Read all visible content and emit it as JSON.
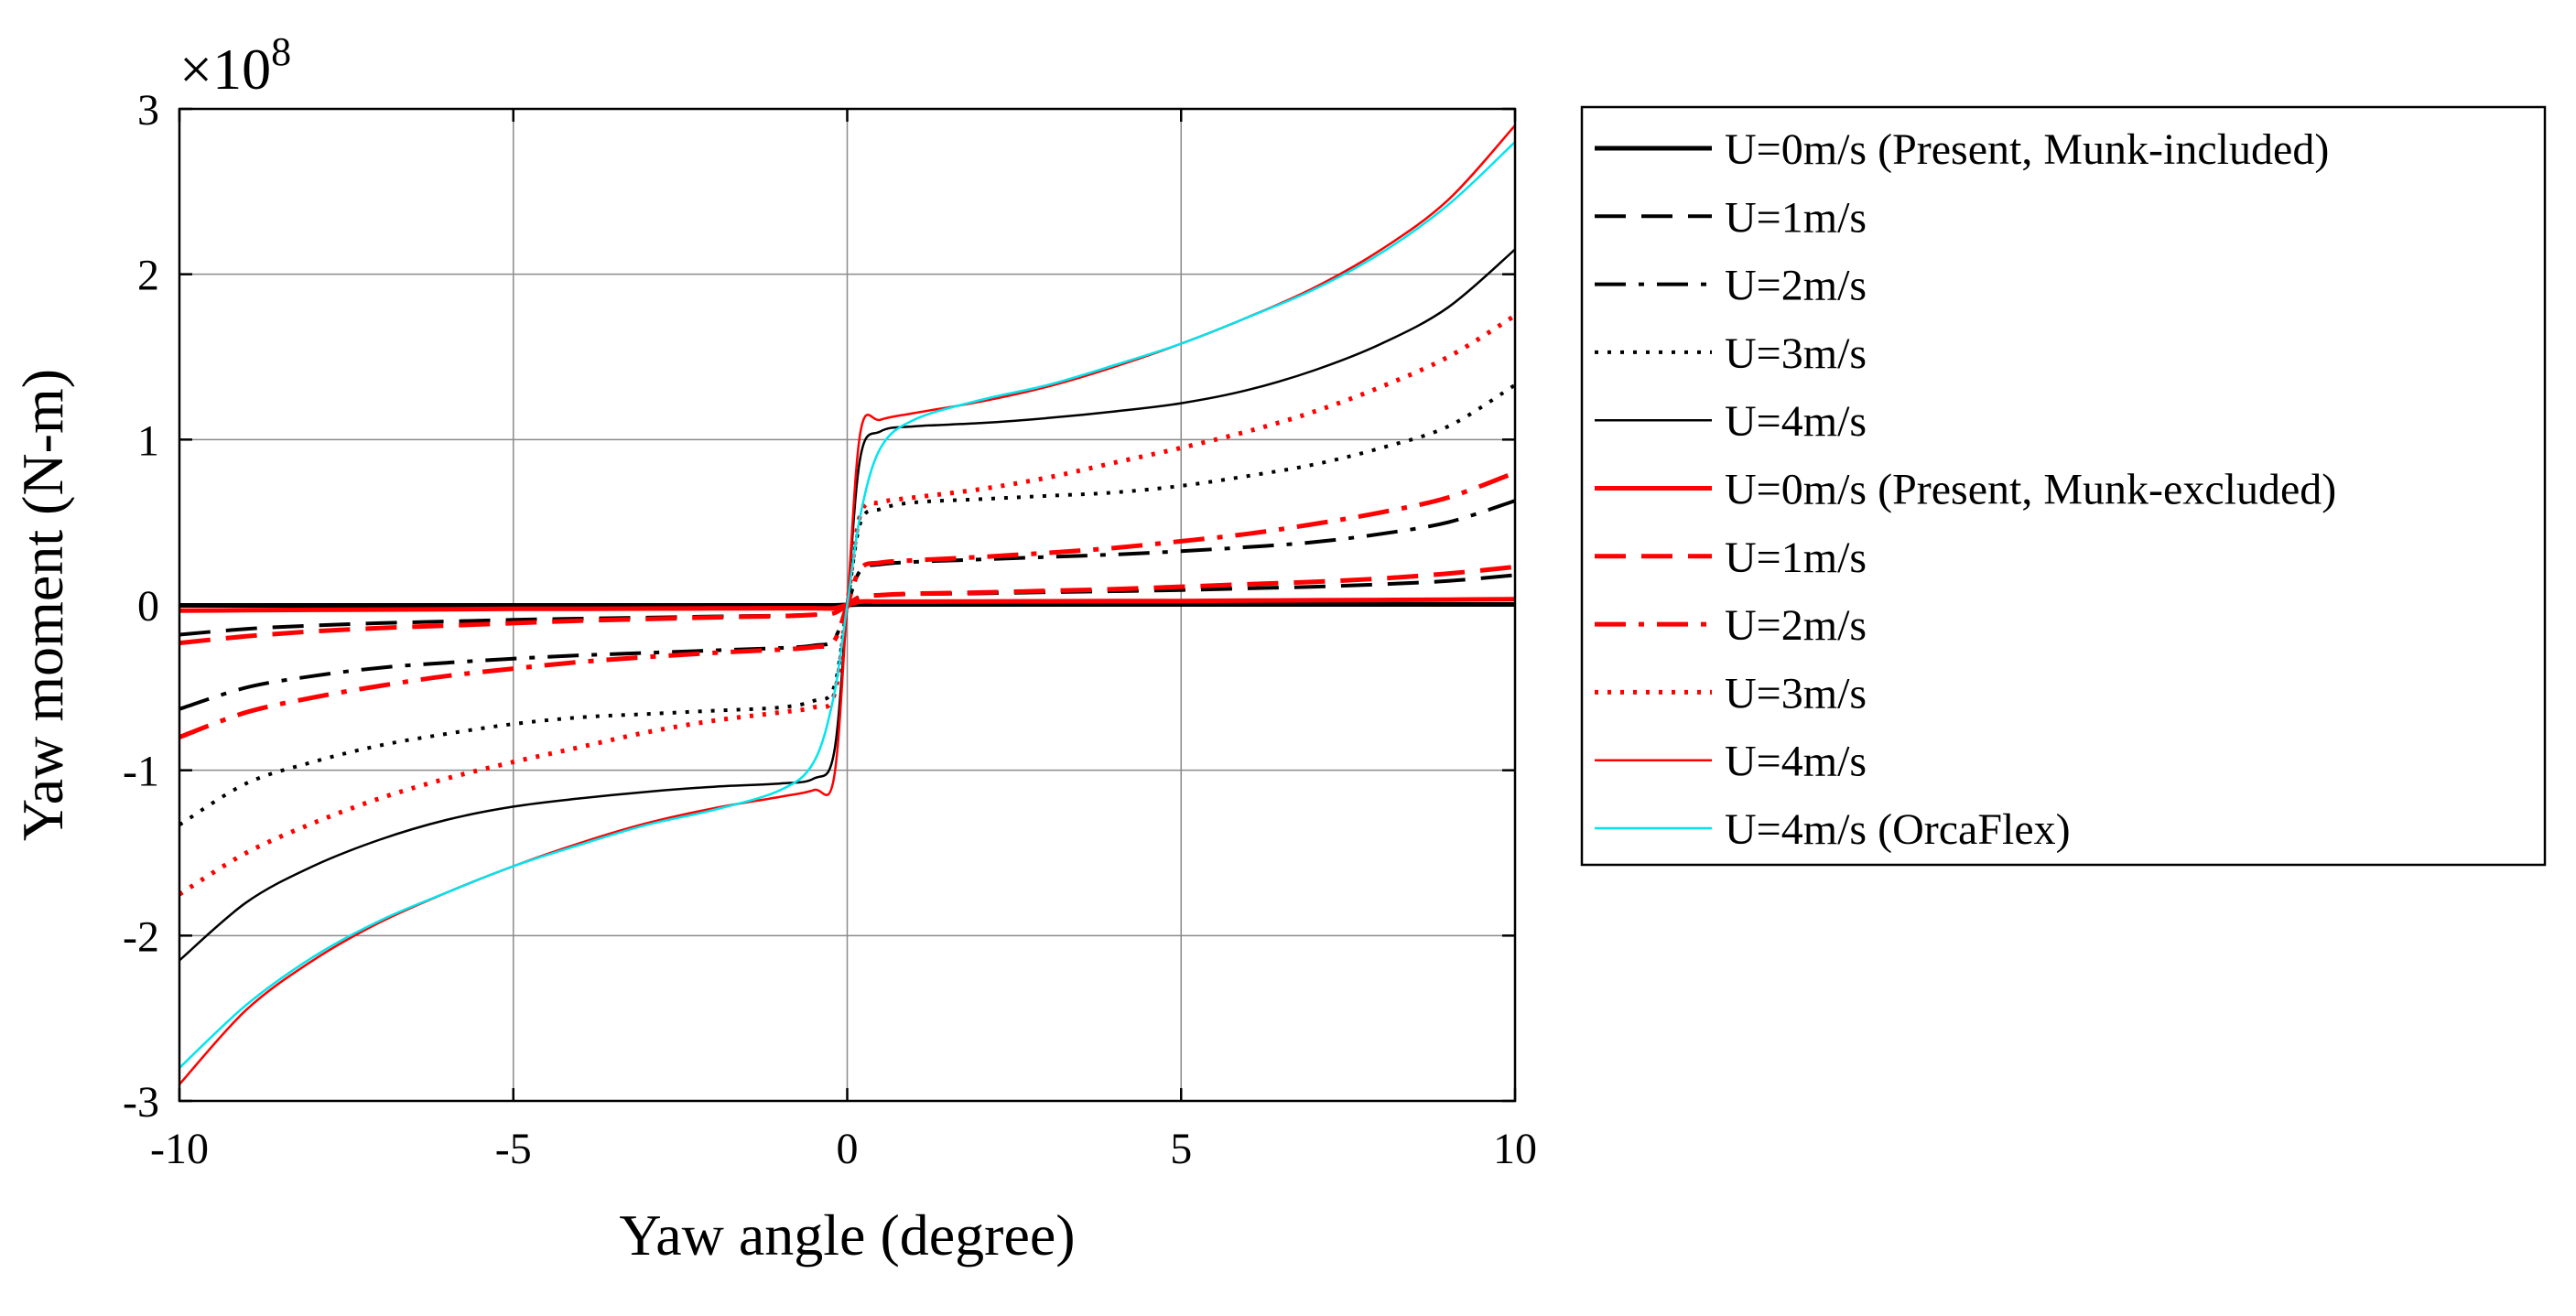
{
  "chart_data": {
    "type": "line",
    "xlabel": "Yaw angle (degree)",
    "ylabel": "Yaw moment (N-m)",
    "y_multiplier_base": "×10",
    "y_multiplier_exp": "8",
    "xlim": [
      -10,
      10
    ],
    "ylim": [
      -3,
      3
    ],
    "grid": true,
    "legend_position": "outside right",
    "xticks": [
      -10,
      -5,
      0,
      5,
      10
    ],
    "yticks": [
      -3,
      -2,
      -1,
      0,
      1,
      2,
      3
    ],
    "xtick_labels": [
      "-10",
      "-5",
      "0",
      "5",
      "10"
    ],
    "ytick_labels": [
      "-3",
      "-2",
      "-1",
      "0",
      "1",
      "2",
      "3"
    ],
    "x": [
      0.2,
      0.5,
      1,
      2,
      3,
      4,
      5,
      6,
      7,
      8,
      9,
      10
    ],
    "series": [
      {
        "name": "U=0m/s (Present, Munk-included)",
        "color": "#000000",
        "width": 5,
        "dash": "solid",
        "values": [
          0.003,
          0.003,
          0.003,
          0.003,
          0.003,
          0.003,
          0.003,
          0.003,
          0.003,
          0.003,
          0.003,
          0.003
        ]
      },
      {
        "name": "U=1m/s",
        "color": "#000000",
        "width": 4,
        "dash": "dashed",
        "values": [
          0.05,
          0.06,
          0.065,
          0.07,
          0.077,
          0.083,
          0.09,
          0.1,
          0.11,
          0.125,
          0.145,
          0.18
        ]
      },
      {
        "name": "U=2m/s",
        "color": "#000000",
        "width": 4,
        "dash": "dashdot",
        "values": [
          0.21,
          0.245,
          0.26,
          0.275,
          0.29,
          0.305,
          0.325,
          0.35,
          0.38,
          0.43,
          0.5,
          0.63
        ]
      },
      {
        "name": "U=3m/s",
        "color": "#000000",
        "width": 4,
        "dash": "dotted",
        "values": [
          0.5,
          0.58,
          0.62,
          0.64,
          0.66,
          0.68,
          0.72,
          0.78,
          0.85,
          0.95,
          1.08,
          1.33
        ]
      },
      {
        "name": "U=4m/s",
        "color": "#000000",
        "width": 2.5,
        "dash": "solid",
        "values": [
          0.9,
          1.05,
          1.08,
          1.1,
          1.13,
          1.17,
          1.22,
          1.3,
          1.42,
          1.58,
          1.8,
          2.15
        ]
      },
      {
        "name": "U=0m/s (Present, Munk-excluded)",
        "color": "#ff0000",
        "width": 5,
        "dash": "solid",
        "values": [
          0.02,
          0.02,
          0.02,
          0.021,
          0.022,
          0.023,
          0.024,
          0.026,
          0.028,
          0.03,
          0.032,
          0.035
        ]
      },
      {
        "name": "U=1m/s",
        "color": "#ff0000",
        "width": 5,
        "dash": "dashed",
        "values": [
          0.05,
          0.06,
          0.068,
          0.075,
          0.085,
          0.095,
          0.11,
          0.125,
          0.14,
          0.16,
          0.19,
          0.23
        ]
      },
      {
        "name": "U=2m/s",
        "color": "#ff0000",
        "width": 5,
        "dash": "dashdot",
        "values": [
          0.22,
          0.255,
          0.27,
          0.29,
          0.315,
          0.345,
          0.385,
          0.43,
          0.49,
          0.56,
          0.65,
          0.8
        ]
      },
      {
        "name": "U=3m/s",
        "color": "#ff0000",
        "width": 5,
        "dash": "dotted",
        "values": [
          0.55,
          0.62,
          0.65,
          0.7,
          0.77,
          0.86,
          0.95,
          1.05,
          1.17,
          1.32,
          1.5,
          1.75
        ]
      },
      {
        "name": "U=4m/s",
        "color": "#ff0000",
        "width": 2.5,
        "dash": "solid",
        "values": [
          1.05,
          1.12,
          1.16,
          1.23,
          1.32,
          1.44,
          1.58,
          1.74,
          1.92,
          2.15,
          2.45,
          2.9
        ]
      },
      {
        "name": "U=4m/s (OrcaFlex)",
        "color": "#00e5ee",
        "width": 2.5,
        "dash": "solid",
        "values": [
          0.55,
          0.95,
          1.12,
          1.24,
          1.33,
          1.45,
          1.58,
          1.74,
          1.91,
          2.13,
          2.42,
          2.8
        ]
      }
    ]
  }
}
